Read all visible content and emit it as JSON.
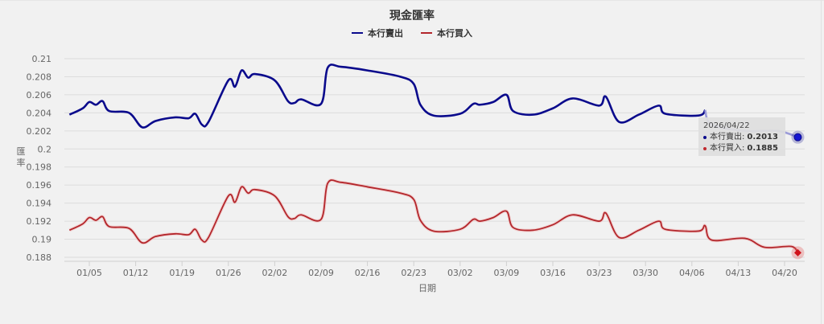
{
  "chart_data": {
    "type": "line",
    "title": "現金匯率",
    "xlabel": "日期",
    "ylabel": "匯率",
    "ylim": [
      0.188,
      0.21
    ],
    "yticks": [
      0.188,
      0.19,
      0.192,
      0.194,
      0.196,
      0.198,
      0.2,
      0.202,
      0.204,
      0.206,
      0.208,
      0.21
    ],
    "ytick_labels": [
      "0.188",
      "0.19",
      "0.192",
      "0.194",
      "0.196",
      "0.198",
      "0.2",
      "0.202",
      "0.204",
      "0.206",
      "0.208",
      "0.21"
    ],
    "xticks": [
      "01/05",
      "01/12",
      "01/19",
      "01/26",
      "02/02",
      "02/09",
      "02/16",
      "02/23",
      "03/02",
      "03/09",
      "03/16",
      "03/23",
      "03/30",
      "04/06",
      "04/13",
      "04/20"
    ],
    "grid": true,
    "legend_position": "top",
    "series": [
      {
        "name": "本行賣出",
        "color": "#0a0a8c",
        "points": [
          [
            "01/02",
            0.2038
          ],
          [
            "01/04",
            0.2045
          ],
          [
            "01/05",
            0.2052
          ],
          [
            "01/06",
            0.2049
          ],
          [
            "01/07",
            0.2053
          ],
          [
            "01/08",
            0.2042
          ],
          [
            "01/11",
            0.204
          ],
          [
            "01/13",
            0.2024
          ],
          [
            "01/15",
            0.2031
          ],
          [
            "01/18",
            0.2035
          ],
          [
            "01/20",
            0.2034
          ],
          [
            "01/21",
            0.2039
          ],
          [
            "01/22",
            0.2027
          ],
          [
            "01/23",
            0.203
          ],
          [
            "01/26",
            0.2076
          ],
          [
            "01/27",
            0.2069
          ],
          [
            "01/28",
            0.2087
          ],
          [
            "01/29",
            0.2079
          ],
          [
            "01/30",
            0.2083
          ],
          [
            "02/02",
            0.2076
          ],
          [
            "02/04",
            0.2053
          ],
          [
            "02/05",
            0.2051
          ],
          [
            "02/06",
            0.2055
          ],
          [
            "02/09",
            0.205
          ],
          [
            "02/10",
            0.209
          ],
          [
            "02/12",
            0.2091
          ],
          [
            "02/16",
            0.2087
          ],
          [
            "02/21",
            0.208
          ],
          [
            "02/23",
            0.2072
          ],
          [
            "02/24",
            0.2049
          ],
          [
            "02/26",
            0.2037
          ],
          [
            "03/02",
            0.2039
          ],
          [
            "03/04",
            0.205
          ],
          [
            "03/05",
            0.2049
          ],
          [
            "03/07",
            0.2052
          ],
          [
            "03/09",
            0.206
          ],
          [
            "03/10",
            0.2042
          ],
          [
            "03/13",
            0.2038
          ],
          [
            "03/16",
            0.2045
          ],
          [
            "03/19",
            0.2056
          ],
          [
            "03/23",
            0.2048
          ],
          [
            "03/24",
            0.2058
          ],
          [
            "03/26",
            0.203
          ],
          [
            "03/29",
            0.2038
          ],
          [
            "04/01",
            0.2048
          ],
          [
            "04/02",
            0.2039
          ],
          [
            "04/07",
            0.2037
          ],
          [
            "04/08",
            0.2043
          ],
          [
            "04/09",
            0.2027
          ],
          [
            "04/14",
            0.202
          ],
          [
            "04/19",
            0.202
          ],
          [
            "04/22",
            0.2013
          ]
        ]
      },
      {
        "name": "本行買入",
        "color": "#b3262b",
        "points": [
          [
            "01/02",
            0.191
          ],
          [
            "01/04",
            0.1917
          ],
          [
            "01/05",
            0.1924
          ],
          [
            "01/06",
            0.1921
          ],
          [
            "01/07",
            0.1925
          ],
          [
            "01/08",
            0.1914
          ],
          [
            "01/11",
            0.1912
          ],
          [
            "01/13",
            0.1896
          ],
          [
            "01/15",
            0.1903
          ],
          [
            "01/18",
            0.1906
          ],
          [
            "01/20",
            0.1905
          ],
          [
            "01/21",
            0.1911
          ],
          [
            "01/22",
            0.1899
          ],
          [
            "01/23",
            0.1902
          ],
          [
            "01/26",
            0.1948
          ],
          [
            "01/27",
            0.1941
          ],
          [
            "01/28",
            0.1958
          ],
          [
            "01/29",
            0.1951
          ],
          [
            "01/30",
            0.1955
          ],
          [
            "02/02",
            0.1948
          ],
          [
            "02/04",
            0.1925
          ],
          [
            "02/05",
            0.1923
          ],
          [
            "02/06",
            0.1927
          ],
          [
            "02/09",
            0.1922
          ],
          [
            "02/10",
            0.1962
          ],
          [
            "02/12",
            0.1963
          ],
          [
            "02/16",
            0.1958
          ],
          [
            "02/21",
            0.1951
          ],
          [
            "02/23",
            0.1944
          ],
          [
            "02/24",
            0.1921
          ],
          [
            "02/26",
            0.1909
          ],
          [
            "03/02",
            0.1911
          ],
          [
            "03/04",
            0.1922
          ],
          [
            "03/05",
            0.192
          ],
          [
            "03/07",
            0.1924
          ],
          [
            "03/09",
            0.1931
          ],
          [
            "03/10",
            0.1913
          ],
          [
            "03/13",
            0.191
          ],
          [
            "03/16",
            0.1916
          ],
          [
            "03/19",
            0.1927
          ],
          [
            "03/23",
            0.192
          ],
          [
            "03/24",
            0.1929
          ],
          [
            "03/26",
            0.1902
          ],
          [
            "03/29",
            0.191
          ],
          [
            "04/01",
            0.192
          ],
          [
            "04/02",
            0.1911
          ],
          [
            "04/07",
            0.1909
          ],
          [
            "04/08",
            0.1915
          ],
          [
            "04/09",
            0.1899
          ],
          [
            "04/14",
            0.1901
          ],
          [
            "04/17",
            0.1891
          ],
          [
            "04/21",
            0.1892
          ],
          [
            "04/22",
            0.1885
          ]
        ]
      }
    ]
  },
  "legend": {
    "items": [
      {
        "label": "本行賣出",
        "color": "#0a0a8c"
      },
      {
        "label": "本行買入",
        "color": "#b3262b"
      }
    ]
  },
  "tooltip": {
    "date": "2026/04/22",
    "rows": [
      {
        "label": "本行賣出:",
        "value": "0.2013",
        "color": "#0a0a8c"
      },
      {
        "label": "本行買入:",
        "value": "0.1885",
        "color": "#c0282d"
      }
    ]
  },
  "axes": {
    "y_title_chars": [
      "匯",
      "率"
    ],
    "x_title": "日期"
  }
}
